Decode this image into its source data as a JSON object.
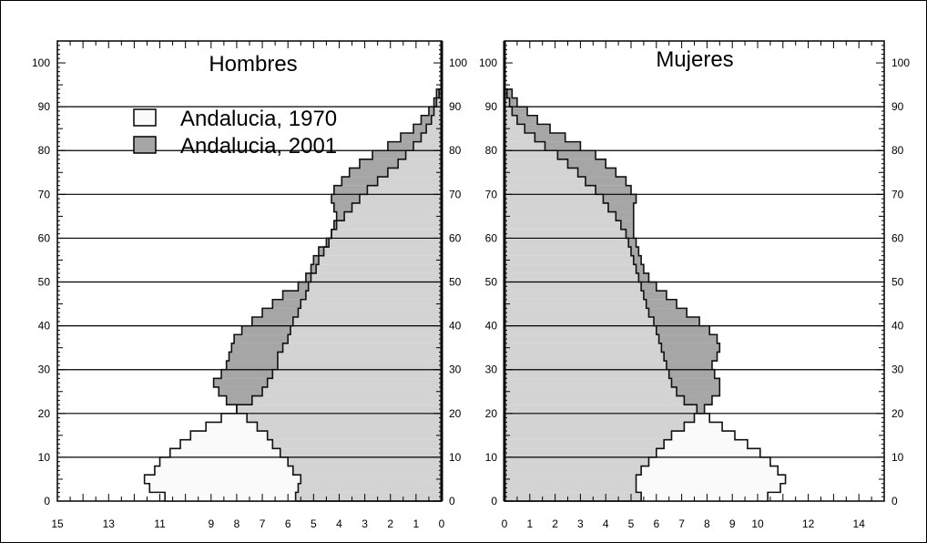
{
  "colors": {
    "pop1970": "#fafafa",
    "pop2001": "#a6a6a6",
    "overlap": "#d3d3d3",
    "stroke": "#111111"
  },
  "chart_data": [
    {
      "type": "population-pyramid",
      "panel": "left",
      "title": "Hombres",
      "xlabel": "",
      "ylabel": "",
      "x_direction": "reversed",
      "xlim": [
        15,
        0
      ],
      "ylim": [
        0,
        105
      ],
      "x_ticks": [
        15,
        13,
        11,
        9,
        8,
        7,
        6,
        5,
        4,
        3,
        2,
        1,
        0
      ],
      "y_ticks": [
        0,
        10,
        20,
        30,
        40,
        50,
        60,
        70,
        80,
        90,
        100
      ],
      "gridlines_y": [
        10,
        20,
        30,
        40,
        50,
        60,
        70,
        80,
        90
      ],
      "legend_position": "top-left",
      "series": [
        {
          "name": "Andalucia, 1970",
          "ages": [
            0,
            2,
            4,
            6,
            8,
            10,
            12,
            14,
            16,
            18,
            20,
            22,
            24,
            26,
            28,
            30,
            32,
            34,
            36,
            38,
            40,
            42,
            44,
            46,
            48,
            50,
            52,
            54,
            56,
            58,
            60,
            62,
            64,
            66,
            68,
            70,
            72,
            74,
            76,
            78,
            80,
            82,
            84,
            86,
            88,
            90,
            92
          ],
          "values": [
            10.8,
            11.4,
            11.6,
            11.2,
            11.0,
            10.6,
            10.2,
            9.8,
            9.2,
            8.6,
            8.0,
            7.4,
            7.0,
            6.8,
            6.6,
            6.4,
            6.4,
            6.2,
            6.0,
            5.9,
            5.8,
            5.6,
            5.5,
            5.3,
            5.2,
            5.1,
            4.9,
            4.8,
            4.6,
            4.4,
            4.3,
            4.1,
            3.8,
            3.5,
            3.2,
            2.9,
            2.5,
            2.1,
            1.7,
            1.4,
            1.1,
            0.8,
            0.6,
            0.4,
            0.3,
            0.2,
            0.1
          ]
        },
        {
          "name": "Andalucia, 2001",
          "ages": [
            0,
            2,
            4,
            6,
            8,
            10,
            12,
            14,
            16,
            18,
            20,
            22,
            24,
            26,
            28,
            30,
            32,
            34,
            36,
            38,
            40,
            42,
            44,
            46,
            48,
            50,
            52,
            54,
            56,
            58,
            60,
            62,
            64,
            66,
            68,
            70,
            72,
            74,
            76,
            78,
            80,
            82,
            84,
            86,
            88,
            90,
            92
          ],
          "values": [
            5.7,
            5.6,
            5.5,
            5.8,
            6.0,
            6.3,
            6.6,
            6.8,
            7.2,
            7.6,
            8.0,
            8.4,
            8.7,
            8.9,
            8.6,
            8.4,
            8.3,
            8.2,
            8.1,
            7.8,
            7.4,
            7.0,
            6.6,
            6.2,
            5.6,
            5.3,
            5.1,
            5.0,
            4.8,
            4.5,
            4.3,
            4.2,
            4.1,
            4.2,
            4.3,
            4.2,
            3.9,
            3.6,
            3.2,
            2.7,
            2.1,
            1.6,
            1.1,
            0.8,
            0.5,
            0.3,
            0.2
          ]
        }
      ]
    },
    {
      "type": "population-pyramid",
      "panel": "right",
      "title": "Mujeres",
      "xlabel": "",
      "ylabel": "",
      "xlim": [
        0,
        15
      ],
      "ylim": [
        0,
        105
      ],
      "x_ticks": [
        0,
        1,
        2,
        3,
        4,
        5,
        6,
        7,
        8,
        9,
        10,
        12,
        14
      ],
      "y_ticks": [
        0,
        10,
        20,
        30,
        40,
        50,
        60,
        70,
        80,
        90,
        100
      ],
      "gridlines_y": [
        10,
        20,
        30,
        40,
        50,
        60,
        70,
        80,
        90
      ],
      "series": [
        {
          "name": "Andalucia, 1970",
          "ages": [
            0,
            2,
            4,
            6,
            8,
            10,
            12,
            14,
            16,
            18,
            20,
            22,
            24,
            26,
            28,
            30,
            32,
            34,
            36,
            38,
            40,
            42,
            44,
            46,
            48,
            50,
            52,
            54,
            56,
            58,
            60,
            62,
            64,
            66,
            68,
            70,
            72,
            74,
            76,
            78,
            80,
            82,
            84,
            86,
            88,
            90,
            92
          ],
          "values": [
            10.4,
            10.9,
            11.1,
            10.8,
            10.5,
            10.1,
            9.6,
            9.1,
            8.6,
            8.1,
            7.6,
            7.1,
            6.8,
            6.6,
            6.5,
            6.4,
            6.3,
            6.2,
            6.1,
            6.0,
            5.9,
            5.7,
            5.6,
            5.5,
            5.4,
            5.3,
            5.2,
            5.1,
            5.0,
            4.9,
            4.8,
            4.6,
            4.4,
            4.1,
            3.9,
            3.6,
            3.2,
            2.9,
            2.5,
            2.1,
            1.6,
            1.2,
            0.8,
            0.5,
            0.3,
            0.2,
            0.1
          ]
        },
        {
          "name": "Andalucia, 2001",
          "ages": [
            0,
            2,
            4,
            6,
            8,
            10,
            12,
            14,
            16,
            18,
            20,
            22,
            24,
            26,
            28,
            30,
            32,
            34,
            36,
            38,
            40,
            42,
            44,
            46,
            48,
            50,
            52,
            54,
            56,
            58,
            60,
            62,
            64,
            66,
            68,
            70,
            72,
            74,
            76,
            78,
            80,
            82,
            84,
            86,
            88,
            90,
            92
          ],
          "values": [
            5.4,
            5.2,
            5.2,
            5.4,
            5.7,
            6.0,
            6.3,
            6.6,
            7.1,
            7.5,
            7.9,
            8.2,
            8.5,
            8.5,
            8.3,
            8.2,
            8.4,
            8.5,
            8.4,
            8.1,
            7.7,
            7.2,
            6.8,
            6.4,
            6.0,
            5.7,
            5.5,
            5.4,
            5.3,
            5.2,
            5.1,
            5.1,
            5.1,
            5.1,
            5.2,
            5.0,
            4.8,
            4.4,
            4.0,
            3.6,
            3.0,
            2.4,
            1.8,
            1.3,
            0.9,
            0.5,
            0.3
          ]
        }
      ]
    }
  ]
}
